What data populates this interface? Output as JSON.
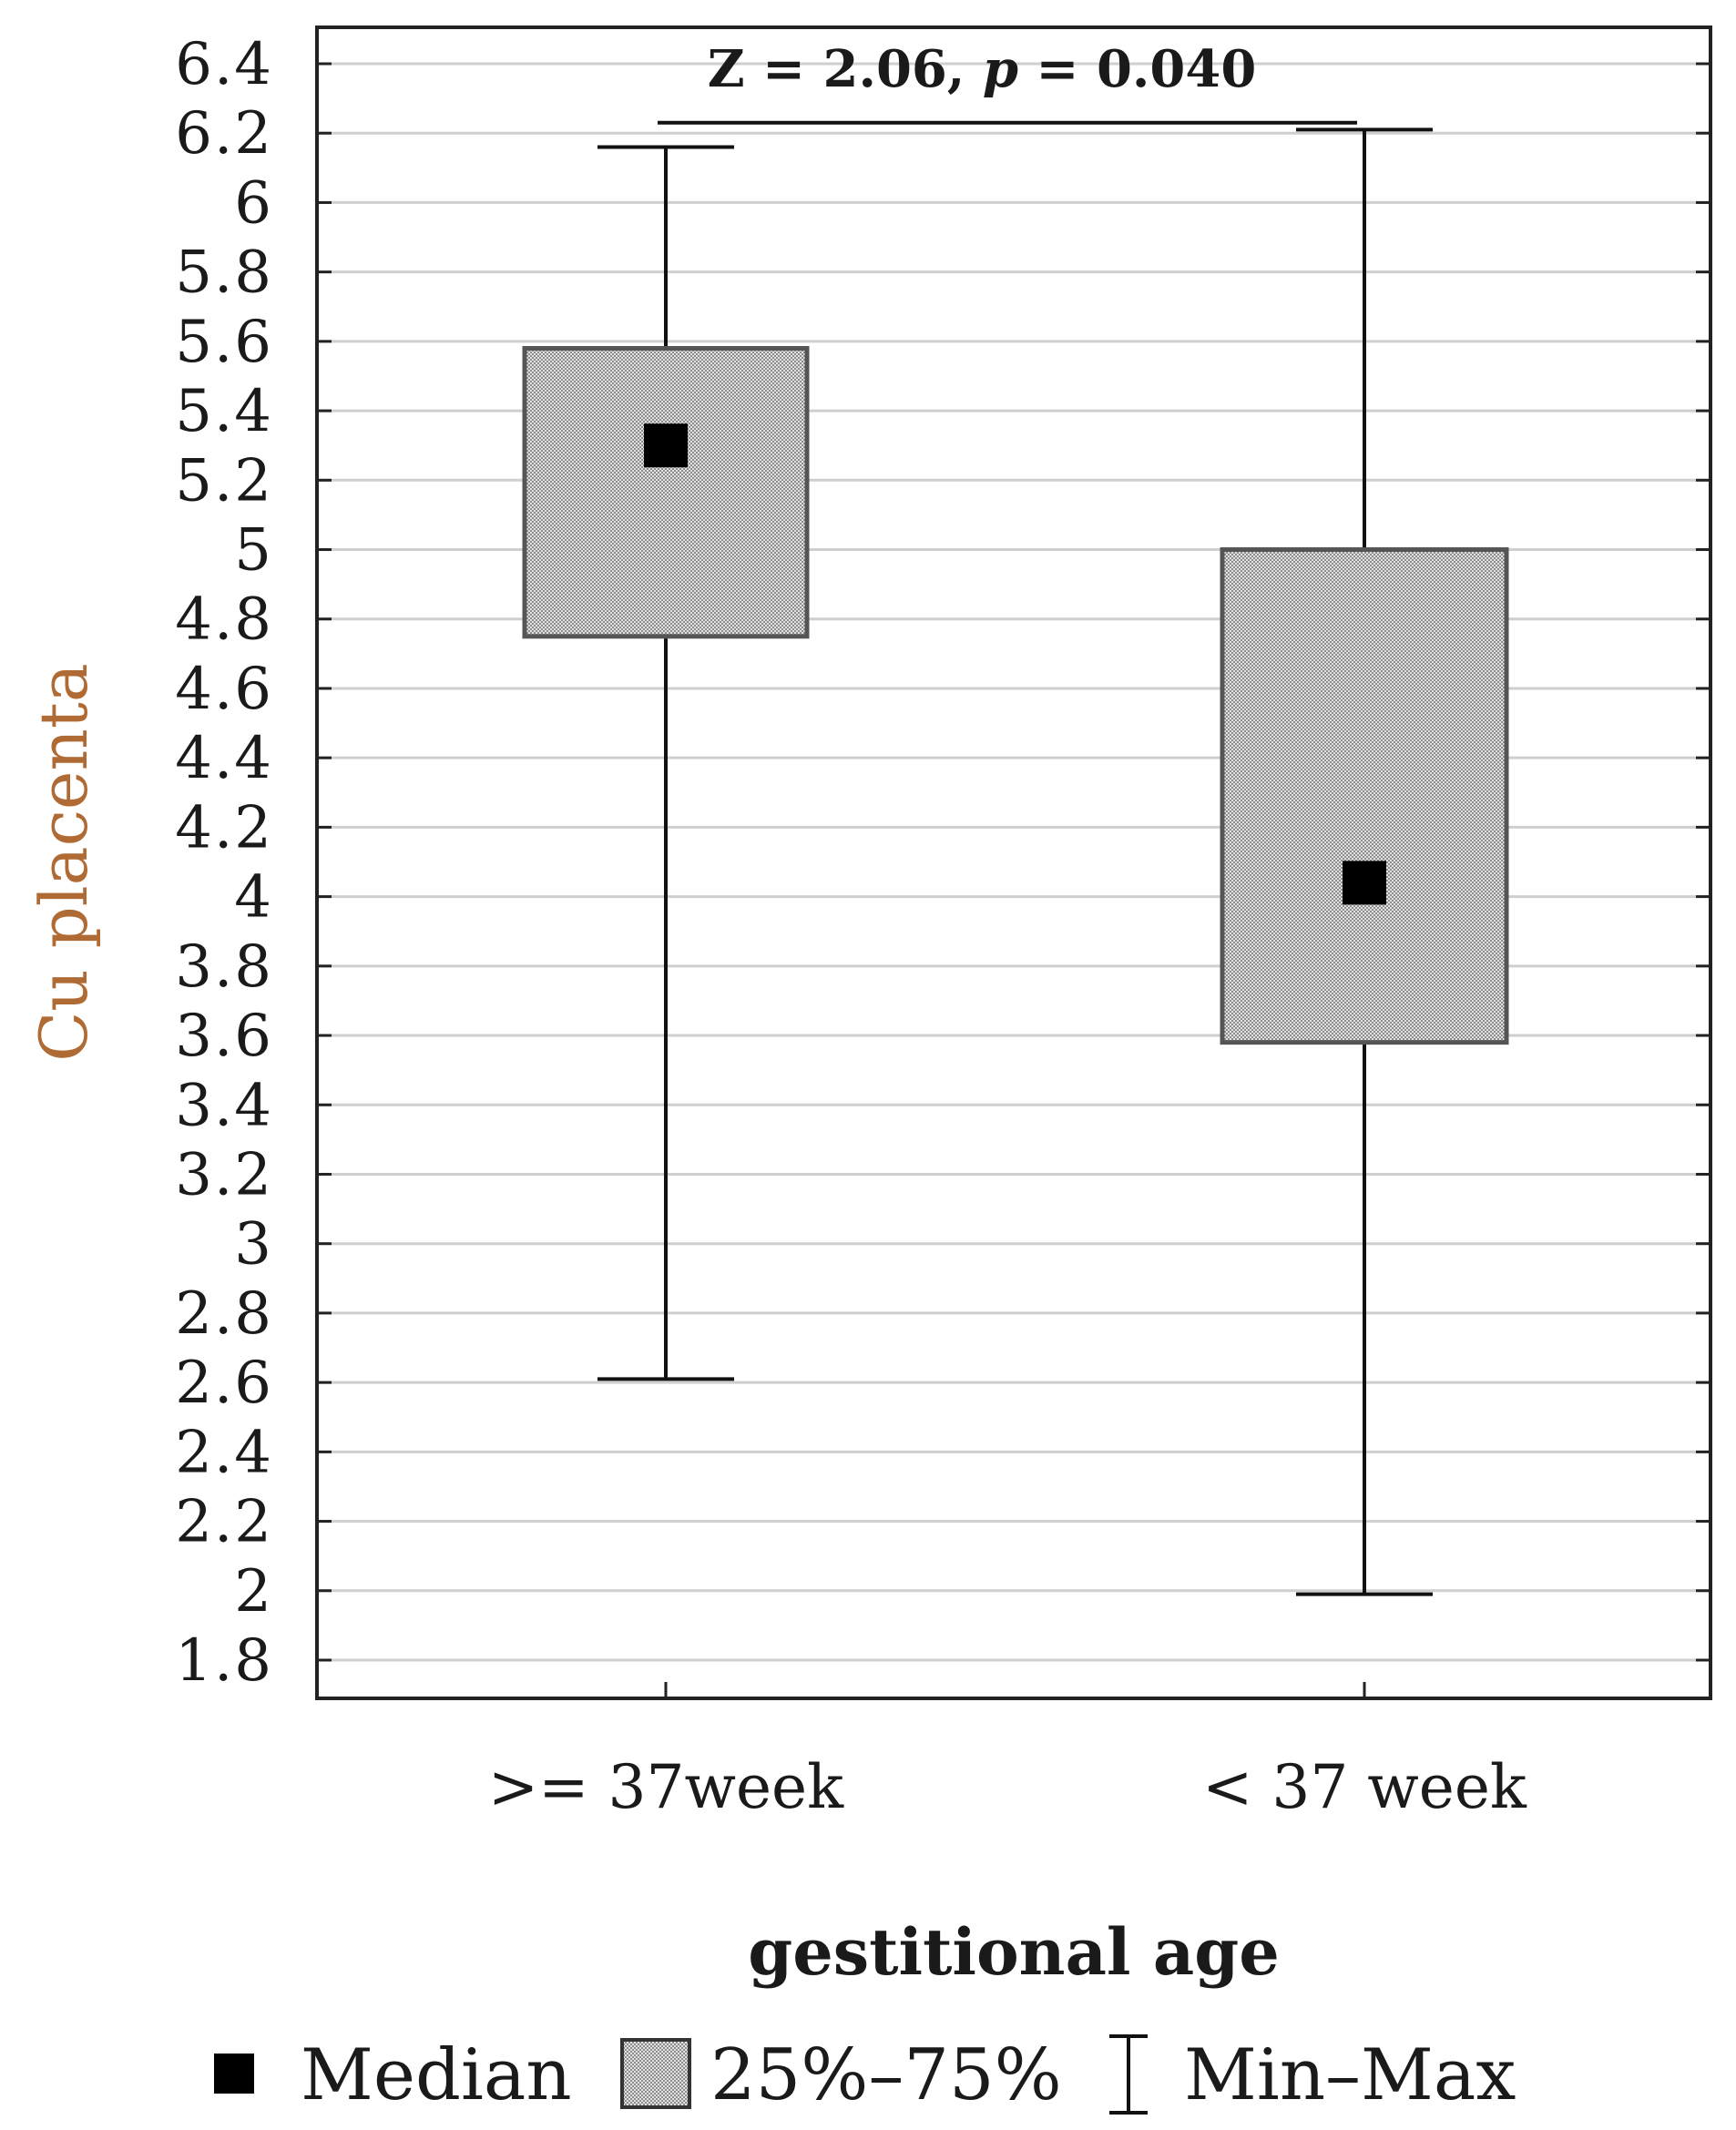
{
  "chart_data": {
    "type": "box",
    "xlabel": "gestitional age",
    "ylabel": "Cu placenta",
    "ylim": [
      1.7,
      6.5
    ],
    "yticks": [
      1.8,
      2,
      2.2,
      2.4,
      2.6,
      2.8,
      3,
      3.2,
      3.4,
      3.6,
      3.8,
      4,
      4.2,
      4.4,
      4.6,
      4.8,
      5,
      5.2,
      5.4,
      5.6,
      5.8,
      6,
      6.2,
      6.4
    ],
    "ytick_labels": [
      "1.8",
      "2",
      "2.2",
      "2.4",
      "2.6",
      "2.8",
      "3",
      "3.2",
      "3.4",
      "3.6",
      "3.8",
      "4",
      "4.2",
      "4.4",
      "4.6",
      "4.8",
      "5",
      "5.2",
      "5.4",
      "5.6",
      "5.8",
      "6",
      "6.2",
      "6.4"
    ],
    "grid": true,
    "categories": [
      ">= 37week",
      "< 37 week"
    ],
    "boxes": [
      {
        "category": ">= 37week",
        "min": 2.61,
        "q1": 4.75,
        "median": 5.3,
        "q3": 5.58,
        "max": 6.16
      },
      {
        "category": "< 37 week",
        "min": 1.99,
        "q1": 3.58,
        "median": 4.04,
        "q3": 5.0,
        "max": 6.21
      }
    ],
    "annotation": {
      "prefix": "Z = 2.06, ",
      "p_symbol": "p",
      "suffix": " = 0.040"
    },
    "legend": {
      "position": "bottom",
      "median_label": "Median",
      "box_label": "25%–75%",
      "whisker_label": "Min–Max"
    },
    "colors": {
      "box_fill": "#b8b8b8",
      "box_stroke": "#555555",
      "median_marker": "#000000",
      "grid": "#cfcfcf",
      "axis": "#222222",
      "ylabel": "#b06a34"
    }
  }
}
